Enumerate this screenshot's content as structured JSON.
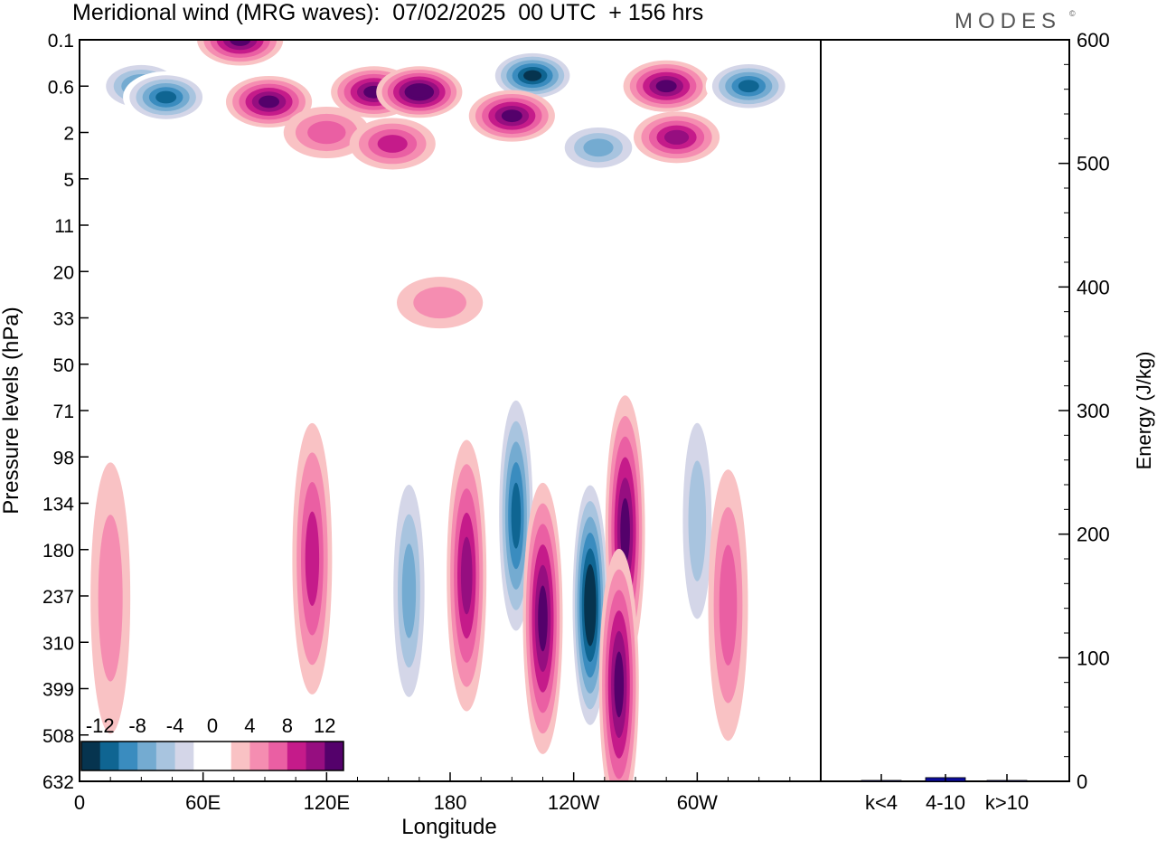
{
  "title": "Meridional wind (MRG waves):  07/02/2025  00 UTC  + 156 hrs",
  "brand": "MODES",
  "brand_mark": "©",
  "chart_data": [
    {
      "type": "heatmap",
      "title": "Meridional wind (MRG waves):  07/02/2025  00 UTC  + 156 hrs",
      "xlabel": "Longitude",
      "ylabel": "Pressure levels (hPa)",
      "x_ticks": [
        "0",
        "60E",
        "120E",
        "180",
        "120W",
        "60W"
      ],
      "x_tick_lon": [
        0,
        60,
        120,
        180,
        240,
        300
      ],
      "xlim": [
        0,
        360
      ],
      "y_ticks": [
        "0.1",
        "0.6",
        "2",
        "5",
        "11",
        "20",
        "33",
        "50",
        "71",
        "98",
        "134",
        "180",
        "237",
        "310",
        "399",
        "508",
        "632"
      ],
      "colorbar": {
        "labels": [
          "-12",
          "-8",
          "-4",
          "0",
          "4",
          "8",
          "12"
        ],
        "colors": [
          "#06344f",
          "#0f6592",
          "#3a8cbf",
          "#74abd1",
          "#a8c4df",
          "#d4d6e8",
          "#ffffff",
          "#ffffff",
          "#f9c2c4",
          "#f58db1",
          "#ea5fa3",
          "#c51b8a",
          "#960e80",
          "#54016b"
        ]
      },
      "features": [
        {
          "lon": 30,
          "level": 0.6,
          "value": -10
        },
        {
          "lon": 42,
          "level": 0.8,
          "value": -12
        },
        {
          "lon": 78,
          "level": 0.1,
          "value": 12
        },
        {
          "lon": 92,
          "level": 0.9,
          "value": 12
        },
        {
          "lon": 143,
          "level": 0.7,
          "value": 12
        },
        {
          "lon": 165,
          "level": 0.7,
          "value": 14
        },
        {
          "lon": 120,
          "level": 2,
          "value": 6
        },
        {
          "lon": 152,
          "level": 2.5,
          "value": 8
        },
        {
          "lon": 220,
          "level": 0.4,
          "value": -14
        },
        {
          "lon": 210,
          "level": 1.3,
          "value": 12
        },
        {
          "lon": 252,
          "level": 2.7,
          "value": -8
        },
        {
          "lon": 285,
          "level": 0.6,
          "value": 12
        },
        {
          "lon": 290,
          "level": 2.2,
          "value": 10
        },
        {
          "lon": 325,
          "level": 0.6,
          "value": -11
        },
        {
          "lon": 160,
          "level": 230,
          "value": -8
        },
        {
          "lon": 188,
          "level": 210,
          "value": 10
        },
        {
          "lon": 212,
          "level": 145,
          "value": -12
        },
        {
          "lon": 225,
          "level": 270,
          "value": 11
        },
        {
          "lon": 248,
          "level": 250,
          "value": -15
        },
        {
          "lon": 265,
          "level": 160,
          "value": 12
        },
        {
          "lon": 262,
          "level": 390,
          "value": 11
        },
        {
          "lon": 300,
          "level": 150,
          "value": -6
        },
        {
          "lon": 113,
          "level": 190,
          "value": 7
        },
        {
          "lon": 315,
          "level": 250,
          "value": 6
        },
        {
          "lon": 175,
          "level": 28,
          "value": 3
        },
        {
          "lon": 15,
          "level": 240,
          "value": 4
        }
      ]
    },
    {
      "type": "bar",
      "categories": [
        "k<4",
        "4-10",
        "k>10"
      ],
      "values": [
        0.5,
        3,
        0.5
      ],
      "ylabel": "Energy (J/kg)",
      "ylim": [
        0,
        600
      ],
      "y_ticks": [
        "0",
        "100",
        "200",
        "300",
        "400",
        "500",
        "600"
      ],
      "bar_color": "#0c0c9c"
    }
  ]
}
